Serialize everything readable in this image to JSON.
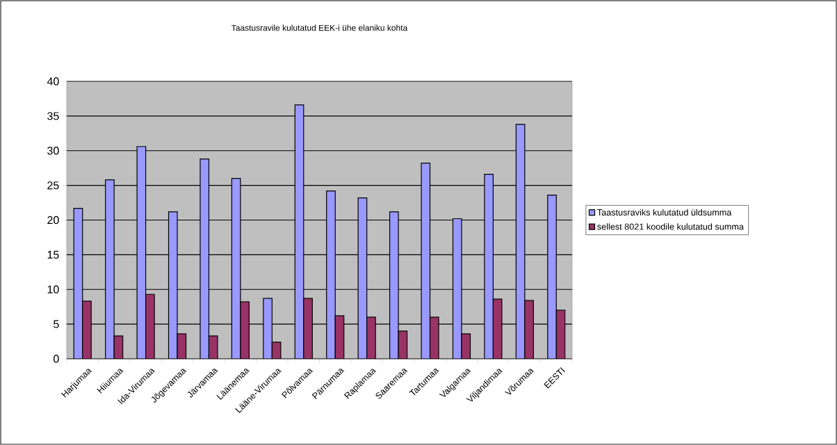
{
  "chart_data": {
    "type": "bar",
    "title": "Taastusravile kulutatud EEK-i ühe elaniku kohta",
    "categories": [
      "Harjumaa",
      "Hiiumaa",
      "Ida-Virumaa",
      "Jõgevamaa",
      "Järvamaa",
      "Läänemaa",
      "Lääne-Virumaa",
      "Põlvamaa",
      "Pärnumaa",
      "Raplamaa",
      "Saaremaa",
      "Tartumaa",
      "Valgamaa",
      "Viljandimaa",
      "Võrumaa",
      "EESTI"
    ],
    "series": [
      {
        "name": "Taastusraviks kulutatud üldsumma",
        "color": "#9999ff",
        "values": [
          21.7,
          25.8,
          30.6,
          21.2,
          28.8,
          26.0,
          8.7,
          36.6,
          24.2,
          23.2,
          21.2,
          28.2,
          20.2,
          26.6,
          33.8,
          23.6
        ]
      },
      {
        "name": "sellest 8021 koodile kulutatud summa",
        "color": "#993366",
        "values": [
          8.3,
          3.3,
          9.3,
          3.6,
          3.3,
          8.2,
          2.4,
          8.7,
          6.2,
          6.0,
          4.0,
          6.0,
          3.6,
          8.6,
          8.4,
          7.0
        ]
      }
    ],
    "ylim": [
      0,
      40
    ],
    "yticks": [
      0,
      5,
      10,
      15,
      20,
      25,
      30,
      35,
      40
    ],
    "grid": "y",
    "legend": "right"
  }
}
